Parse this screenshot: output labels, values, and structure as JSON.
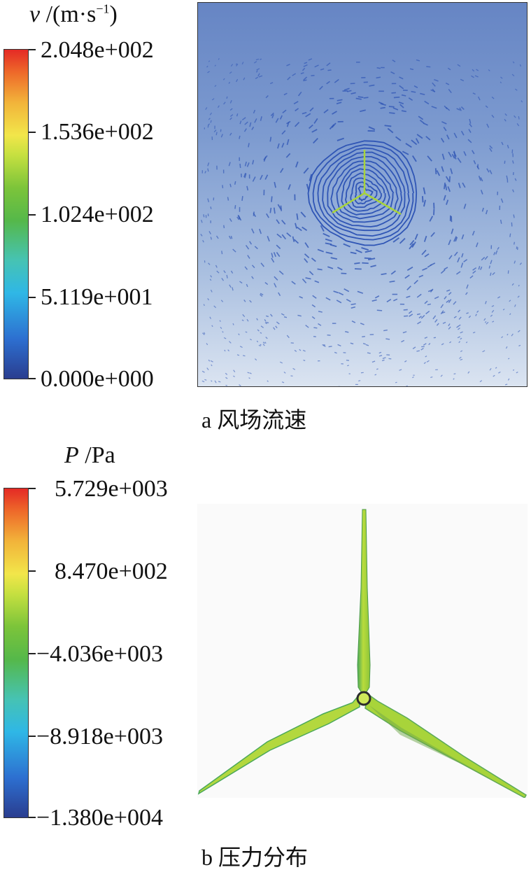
{
  "panel_a": {
    "unit_symbol": "v",
    "unit_text": " /(m·s",
    "unit_exp": "−1",
    "unit_close": ")",
    "ticks": [
      "2.048e+002",
      "1.536e+002",
      "1.024e+002",
      "5.119e+001",
      "0.000e+000"
    ],
    "caption": "a 风场流速"
  },
  "panel_b": {
    "unit_symbol": "P",
    "unit_text": " /Pa",
    "ticks": [
      "5.729e+003",
      "8.470e+002",
      "−4.036e+003",
      "−8.918e+003",
      "−1.380e+004"
    ],
    "caption": "b 压力分布"
  },
  "colors": {
    "flow_background": "#7d9bd0",
    "vector_color": "#2f55b5",
    "blade_color": "#a8d43a",
    "blade_edge_color": "#4aa85a"
  }
}
